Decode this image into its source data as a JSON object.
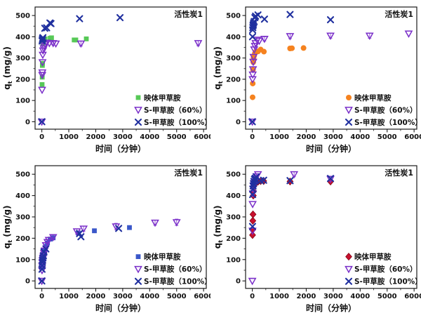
{
  "figure": {
    "background": "#ffffff",
    "frame_color": "#1a1a1a",
    "tick_color": "#1a1a1a"
  },
  "chart_data": [
    {
      "type": "scatter",
      "title": "活性炭1",
      "xlabel": "时间（分钟）",
      "ylabel": "q_t (mg/g)",
      "xlim": [
        -250,
        6100
      ],
      "ylim": [
        -35,
        540
      ],
      "xticks": [
        0,
        1000,
        2000,
        3000,
        4000,
        5000,
        6000
      ],
      "yticks": [
        0,
        100,
        200,
        300,
        400,
        500
      ],
      "minor_x_step": 500,
      "minor_y_step": 50,
      "grid": false,
      "legend_position": "bottom-right",
      "series": [
        {
          "name": "映体甲草胺",
          "marker": "square",
          "color": "#57C957",
          "points": [
            [
              10,
              175
            ],
            [
              15,
              210
            ],
            [
              20,
              265
            ],
            [
              25,
              275
            ],
            [
              35,
              370
            ],
            [
              45,
              380
            ],
            [
              70,
              385
            ],
            [
              120,
              390
            ],
            [
              310,
              393
            ],
            [
              360,
              395
            ],
            [
              1200,
              385
            ],
            [
              1260,
              385
            ],
            [
              1650,
              390
            ]
          ]
        },
        {
          "name": "S-甲草胺（60%）",
          "marker": "triangle-open",
          "color": "#7A2FC9",
          "points": [
            [
              0,
              0
            ],
            [
              10,
              150
            ],
            [
              15,
              220
            ],
            [
              20,
              232
            ],
            [
              25,
              280
            ],
            [
              35,
              315
            ],
            [
              45,
              335
            ],
            [
              70,
              345
            ],
            [
              90,
              355
            ],
            [
              120,
              365
            ],
            [
              180,
              372
            ],
            [
              280,
              370
            ],
            [
              420,
              370,
              8
            ],
            [
              520,
              368
            ],
            [
              1450,
              368,
              12
            ],
            [
              5800,
              370,
              12
            ]
          ]
        },
        {
          "name": "S-甲草胺（100%）",
          "marker": "x",
          "color": "#20309F",
          "points": [
            [
              0,
              0
            ],
            [
              12,
              380
            ],
            [
              20,
              386
            ],
            [
              28,
              392
            ],
            [
              40,
              396
            ],
            [
              110,
              440
            ],
            [
              180,
              442
            ],
            [
              300,
              465
            ],
            [
              340,
              462
            ],
            [
              1400,
              485
            ],
            [
              2900,
              490
            ]
          ]
        }
      ]
    },
    {
      "type": "scatter",
      "title": "活性炭1",
      "xlabel": "时间（分钟）",
      "ylabel": "q_t (mg/g)",
      "xlim": [
        -250,
        6100
      ],
      "ylim": [
        -35,
        540
      ],
      "xticks": [
        0,
        1000,
        2000,
        3000,
        4000,
        5000,
        6000
      ],
      "yticks": [
        0,
        100,
        200,
        300,
        400,
        500
      ],
      "minor_x_step": 500,
      "minor_y_step": 50,
      "grid": false,
      "legend_position": "bottom-right",
      "series": [
        {
          "name": "映体甲草胺",
          "marker": "circle",
          "color": "#F5821F",
          "points": [
            [
              10,
              115
            ],
            [
              15,
              180
            ],
            [
              25,
              245
            ],
            [
              35,
              280
            ],
            [
              45,
              300
            ],
            [
              70,
              312
            ],
            [
              95,
              322
            ],
            [
              130,
              330
            ],
            [
              210,
              331
            ],
            [
              310,
              340
            ],
            [
              430,
              330
            ],
            [
              1400,
              345,
              10
            ],
            [
              1470,
              346
            ],
            [
              1900,
              347
            ]
          ]
        },
        {
          "name": "S-甲草胺（60%）",
          "marker": "triangle-open",
          "color": "#7A2FC9",
          "points": [
            [
              0,
              0
            ],
            [
              10,
              200
            ],
            [
              15,
              222
            ],
            [
              25,
              247
            ],
            [
              35,
              282
            ],
            [
              45,
              305
            ],
            [
              70,
              340
            ],
            [
              95,
              357
            ],
            [
              120,
              370
            ],
            [
              180,
              386
            ],
            [
              260,
              381
            ],
            [
              450,
              390,
              10
            ],
            [
              1400,
              403,
              12
            ],
            [
              2900,
              405,
              12
            ],
            [
              4350,
              405,
              12
            ],
            [
              5800,
              415
            ]
          ]
        },
        {
          "name": "S-甲草胺（100%）",
          "marker": "x",
          "color": "#20309F",
          "points": [
            [
              0,
              0
            ],
            [
              8,
              400
            ],
            [
              12,
              432
            ],
            [
              18,
              443
            ],
            [
              25,
              452
            ],
            [
              35,
              457
            ],
            [
              45,
              465
            ],
            [
              70,
              472
            ],
            [
              95,
              490
            ],
            [
              120,
              497
            ],
            [
              210,
              503
            ],
            [
              450,
              483
            ],
            [
              1400,
              505
            ],
            [
              2900,
              480
            ]
          ]
        }
      ]
    },
    {
      "type": "scatter",
      "title": "活性炭1",
      "xlabel": "时间（分钟）",
      "ylabel": "q_t (mg/g)",
      "xlim": [
        -250,
        6100
      ],
      "ylim": [
        -35,
        540
      ],
      "xticks": [
        0,
        1000,
        2000,
        3000,
        4000,
        5000,
        6000
      ],
      "yticks": [
        0,
        100,
        200,
        300,
        400,
        500
      ],
      "minor_x_step": 500,
      "minor_y_step": 50,
      "grid": false,
      "legend_position": "bottom-right",
      "series": [
        {
          "name": "映体甲草胺",
          "marker": "square",
          "color": "#3A57C9",
          "points": [
            [
              8,
              60
            ],
            [
              14,
              75
            ],
            [
              22,
              90
            ],
            [
              30,
              100
            ],
            [
              42,
              110
            ],
            [
              60,
              120
            ],
            [
              80,
              132
            ],
            [
              105,
              142
            ],
            [
              150,
              162
            ],
            [
              210,
              178
            ],
            [
              310,
              196
            ],
            [
              420,
              202
            ],
            [
              1350,
              225
            ],
            [
              1950,
              235
            ],
            [
              3250,
              250
            ]
          ]
        },
        {
          "name": "S-甲草胺（60%）",
          "marker": "triangle-open",
          "color": "#7A2FC9",
          "points": [
            [
              0,
              0
            ],
            [
              8,
              50
            ],
            [
              14,
              70
            ],
            [
              22,
              85
            ],
            [
              30,
              96
            ],
            [
              42,
              106
            ],
            [
              60,
              117
            ],
            [
              80,
              130
            ],
            [
              105,
              142
            ],
            [
              150,
              167
            ],
            [
              210,
              182
            ],
            [
              260,
              192
            ],
            [
              420,
              205,
              10
            ],
            [
              1300,
              232,
              12
            ],
            [
              1550,
              245,
              12
            ],
            [
              2750,
              255,
              15
            ],
            [
              4200,
              273,
              12
            ],
            [
              5000,
              275,
              15
            ]
          ]
        },
        {
          "name": "S-甲草胺（100%）",
          "marker": "x",
          "color": "#20309F",
          "points": [
            [
              0,
              0
            ],
            [
              8,
              55
            ],
            [
              14,
              72
            ],
            [
              22,
              88
            ],
            [
              30,
              98
            ],
            [
              42,
              108
            ],
            [
              60,
              118
            ],
            [
              80,
              136
            ],
            [
              150,
              150
            ],
            [
              1400,
              222
            ],
            [
              1450,
              207
            ],
            [
              2850,
              246
            ]
          ]
        }
      ]
    },
    {
      "type": "scatter",
      "title": "活性炭1",
      "xlabel": "时间（分钟）",
      "ylabel": "q_t (mg/g)",
      "xlim": [
        -250,
        6100
      ],
      "ylim": [
        -35,
        540
      ],
      "xticks": [
        0,
        1000,
        2000,
        3000,
        4000,
        5000,
        6000
      ],
      "yticks": [
        0,
        100,
        200,
        300,
        400,
        500
      ],
      "minor_x_step": 500,
      "minor_y_step": 50,
      "grid": false,
      "legend_position": "bottom-right",
      "series": [
        {
          "name": "映体甲草胺",
          "marker": "diamond",
          "color": "#C8102E",
          "points": [
            [
              8,
              215
            ],
            [
              12,
              240
            ],
            [
              18,
              282
            ],
            [
              25,
              312
            ],
            [
              35,
              400
            ],
            [
              45,
              420
            ],
            [
              60,
              445
            ],
            [
              80,
              455
            ],
            [
              105,
              460
            ],
            [
              150,
              462
            ],
            [
              210,
              465
            ],
            [
              310,
              468
            ],
            [
              420,
              468
            ],
            [
              1400,
              466
            ],
            [
              2900,
              466
            ]
          ]
        },
        {
          "name": "S-甲草胺（60%）",
          "marker": "triangle-open",
          "color": "#7A2FC9",
          "points": [
            [
              0,
              0
            ],
            [
              8,
              235
            ],
            [
              12,
              360
            ],
            [
              20,
              410
            ],
            [
              30,
              432
            ],
            [
              42,
              445
            ],
            [
              60,
              455
            ],
            [
              80,
              465
            ],
            [
              105,
              476
            ],
            [
              150,
              490
            ],
            [
              210,
              500
            ],
            [
              1550,
              500,
              12
            ],
            [
              2900,
              478
            ]
          ]
        },
        {
          "name": "S-甲草胺（100%）",
          "marker": "x",
          "color": "#20309F",
          "points": [
            [
              8,
              255
            ],
            [
              12,
              405
            ],
            [
              20,
              430
            ],
            [
              30,
              445
            ],
            [
              42,
              456
            ],
            [
              60,
              466
            ],
            [
              80,
              476
            ],
            [
              105,
              481
            ],
            [
              150,
              488
            ],
            [
              310,
              470
            ],
            [
              420,
              472
            ],
            [
              1400,
              470
            ],
            [
              2900,
              480
            ]
          ]
        }
      ]
    }
  ]
}
